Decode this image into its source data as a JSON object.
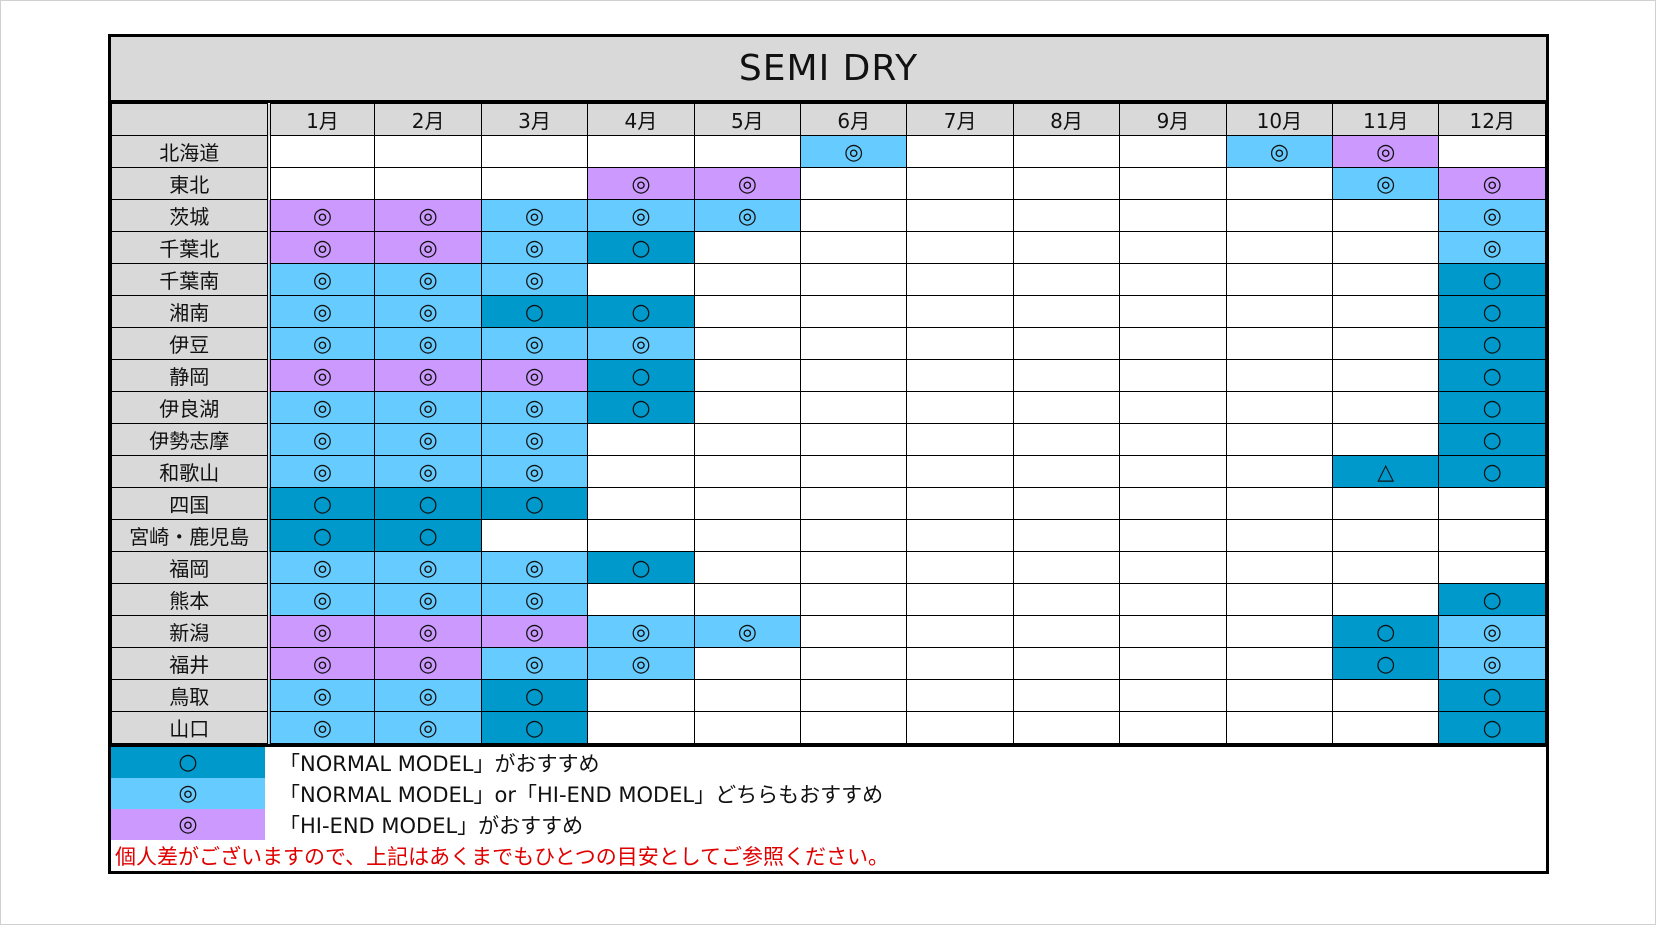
{
  "title": "SEMI DRY",
  "colors": {
    "normal": "#0099cc",
    "both": "#66ccff",
    "hiend": "#cc99ff",
    "header_bg": "#d9d9d9",
    "note_text": "#e00000"
  },
  "symbols": {
    "double_circle": "◎",
    "circle": "○",
    "triangle": "△"
  },
  "months": [
    "1月",
    "2月",
    "3月",
    "4月",
    "5月",
    "6月",
    "7月",
    "8月",
    "9月",
    "10月",
    "11月",
    "12月"
  ],
  "rows": [
    {
      "region": "北海道",
      "cells": [
        "",
        "",
        "",
        "",
        "",
        "B◎",
        "",
        "",
        "",
        "B◎",
        "H◎",
        ""
      ]
    },
    {
      "region": "東北",
      "cells": [
        "",
        "",
        "",
        "H◎",
        "H◎",
        "",
        "",
        "",
        "",
        "",
        "B◎",
        "H◎"
      ]
    },
    {
      "region": "茨城",
      "cells": [
        "H◎",
        "H◎",
        "B◎",
        "B◎",
        "B◎",
        "",
        "",
        "",
        "",
        "",
        "",
        "B◎"
      ]
    },
    {
      "region": "千葉北",
      "cells": [
        "H◎",
        "H◎",
        "B◎",
        "N○",
        "",
        "",
        "",
        "",
        "",
        "",
        "",
        "B◎"
      ]
    },
    {
      "region": "千葉南",
      "cells": [
        "B◎",
        "B◎",
        "B◎",
        "",
        "",
        "",
        "",
        "",
        "",
        "",
        "",
        "N○"
      ]
    },
    {
      "region": "湘南",
      "cells": [
        "B◎",
        "B◎",
        "N○",
        "N○",
        "",
        "",
        "",
        "",
        "",
        "",
        "",
        "N○"
      ]
    },
    {
      "region": "伊豆",
      "cells": [
        "B◎",
        "B◎",
        "B◎",
        "B◎",
        "",
        "",
        "",
        "",
        "",
        "",
        "",
        "N○"
      ]
    },
    {
      "region": "静岡",
      "cells": [
        "H◎",
        "H◎",
        "H◎",
        "N○",
        "",
        "",
        "",
        "",
        "",
        "",
        "",
        "N○"
      ]
    },
    {
      "region": "伊良湖",
      "cells": [
        "B◎",
        "B◎",
        "B◎",
        "N○",
        "",
        "",
        "",
        "",
        "",
        "",
        "",
        "N○"
      ]
    },
    {
      "region": "伊勢志摩",
      "cells": [
        "B◎",
        "B◎",
        "B◎",
        "",
        "",
        "",
        "",
        "",
        "",
        "",
        "",
        "N○"
      ]
    },
    {
      "region": "和歌山",
      "cells": [
        "B◎",
        "B◎",
        "B◎",
        "",
        "",
        "",
        "",
        "",
        "",
        "",
        "N△",
        "N○"
      ]
    },
    {
      "region": "四国",
      "cells": [
        "N○",
        "N○",
        "N○",
        "",
        "",
        "",
        "",
        "",
        "",
        "",
        "",
        ""
      ]
    },
    {
      "region": "宮崎・鹿児島",
      "cells": [
        "N○",
        "N○",
        "",
        "",
        "",
        "",
        "",
        "",
        "",
        "",
        "",
        ""
      ]
    },
    {
      "region": "福岡",
      "cells": [
        "B◎",
        "B◎",
        "B◎",
        "N○",
        "",
        "",
        "",
        "",
        "",
        "",
        "",
        ""
      ]
    },
    {
      "region": "熊本",
      "cells": [
        "B◎",
        "B◎",
        "B◎",
        "",
        "",
        "",
        "",
        "",
        "",
        "",
        "",
        "N○"
      ]
    },
    {
      "region": "新潟",
      "cells": [
        "H◎",
        "H◎",
        "H◎",
        "B◎",
        "B◎",
        "",
        "",
        "",
        "",
        "",
        "N○",
        "B◎"
      ]
    },
    {
      "region": "福井",
      "cells": [
        "H◎",
        "H◎",
        "B◎",
        "B◎",
        "",
        "",
        "",
        "",
        "",
        "",
        "N○",
        "B◎"
      ]
    },
    {
      "region": "鳥取",
      "cells": [
        "B◎",
        "B◎",
        "N○",
        "",
        "",
        "",
        "",
        "",
        "",
        "",
        "",
        "N○"
      ]
    },
    {
      "region": "山口",
      "cells": [
        "B◎",
        "B◎",
        "N○",
        "",
        "",
        "",
        "",
        "",
        "",
        "",
        "",
        "N○"
      ]
    }
  ],
  "legend": [
    {
      "key": "N",
      "symbol": "○",
      "text": "「NORMAL MODEL」がおすすめ"
    },
    {
      "key": "B",
      "symbol": "◎",
      "text": "「NORMAL MODEL」or「HI-END MODEL」どちらもおすすめ"
    },
    {
      "key": "H",
      "symbol": "◎",
      "text": "「HI-END MODEL」がおすすめ"
    }
  ],
  "note": "個人差がございますので、上記はあくまでもひとつの目安としてご参照ください。"
}
